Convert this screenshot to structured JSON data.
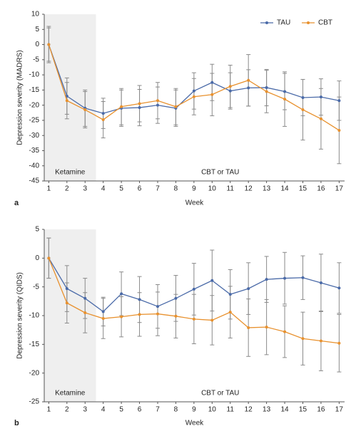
{
  "chart_data": [
    {
      "type": "line",
      "panel_label": "a",
      "xlabel": "Week",
      "ylabel": "Depression severity (MADRS)",
      "xlim": [
        0.75,
        17.3
      ],
      "xticks": [
        1,
        2,
        3,
        4,
        5,
        6,
        7,
        8,
        9,
        10,
        11,
        12,
        13,
        14,
        15,
        16,
        17
      ],
      "ylim": [
        -45,
        10
      ],
      "yticks": [
        10,
        5,
        0,
        -5,
        -10,
        -15,
        -20,
        -25,
        -30,
        -35,
        -40,
        -45
      ],
      "grid": false,
      "legend": "upper right",
      "span": {
        "label": "Ketamine",
        "x": [
          0.75,
          3.6
        ]
      },
      "annotation": "CBT or TAU",
      "series": [
        {
          "name": "TAU",
          "color": "#4a6aa8",
          "values": [
            0,
            -17,
            -21,
            -22.7,
            -21,
            -20.8,
            -20,
            -21,
            -15.3,
            -12.5,
            -15.3,
            -14.3,
            -14.2,
            -15.5,
            -17.5,
            -17.3,
            -18.5
          ],
          "errors": [
            6,
            6,
            6,
            5,
            6,
            6,
            6,
            6,
            6,
            6,
            6,
            6,
            6,
            6,
            6,
            6,
            6.5
          ]
        },
        {
          "name": "CBT",
          "color": "#e8912e",
          "values": [
            0,
            -18.5,
            -21.5,
            -24.8,
            -20.5,
            -19.5,
            -18.5,
            -20.5,
            -17.2,
            -16.5,
            -13.8,
            -11.8,
            -15.5,
            -18,
            -21.5,
            -24.5,
            -28.3
          ],
          "errors": [
            5.5,
            6,
            6,
            6,
            6,
            6,
            6,
            6,
            6,
            7,
            7,
            8.5,
            7,
            9,
            10,
            10,
            11
          ]
        }
      ]
    },
    {
      "type": "line",
      "panel_label": "b",
      "xlabel": "Week",
      "ylabel": "Depression severity (QIDS)",
      "xlim": [
        0.75,
        17.3
      ],
      "xticks": [
        1,
        2,
        3,
        4,
        5,
        6,
        7,
        8,
        9,
        10,
        11,
        12,
        13,
        14,
        15,
        16,
        17
      ],
      "ylim": [
        -25,
        5
      ],
      "yticks": [
        5,
        0,
        -5,
        -10,
        -15,
        -20,
        -25
      ],
      "grid": false,
      "span": {
        "label": "Ketamine",
        "x": [
          0.75,
          3.6
        ]
      },
      "annotation": "CBT or TAU",
      "series": [
        {
          "name": "TAU",
          "color": "#4a6aa8",
          "values": [
            0,
            -5.3,
            -7,
            -9.3,
            -6.2,
            -7.2,
            -8.4,
            -7,
            -5.4,
            -3.9,
            -6.3,
            -5.3,
            -3.7,
            -3.5,
            -3.4,
            -4.3,
            -5.2
          ],
          "errors": [
            3.5,
            4,
            3.5,
            2.5,
            3.8,
            4,
            3.8,
            4,
            4.5,
            5.3,
            4.3,
            4.5,
            4,
            4.5,
            3.8,
            5,
            4.4
          ]
        },
        {
          "name": "CBT",
          "color": "#e8912e",
          "values": [
            0,
            -7.8,
            -9.5,
            -10.5,
            -10.2,
            -9.8,
            -9.7,
            -10.1,
            -10.6,
            -10.8,
            -9.4,
            -12.1,
            -12,
            -12.8,
            -14,
            -14.4,
            -14.8
          ],
          "errors": [
            3.5,
            3.5,
            3.5,
            3.5,
            3.5,
            3.8,
            3.8,
            3.8,
            4.3,
            4.3,
            4.5,
            5,
            4.8,
            4.5,
            4.6,
            5.2,
            5
          ]
        }
      ]
    }
  ]
}
